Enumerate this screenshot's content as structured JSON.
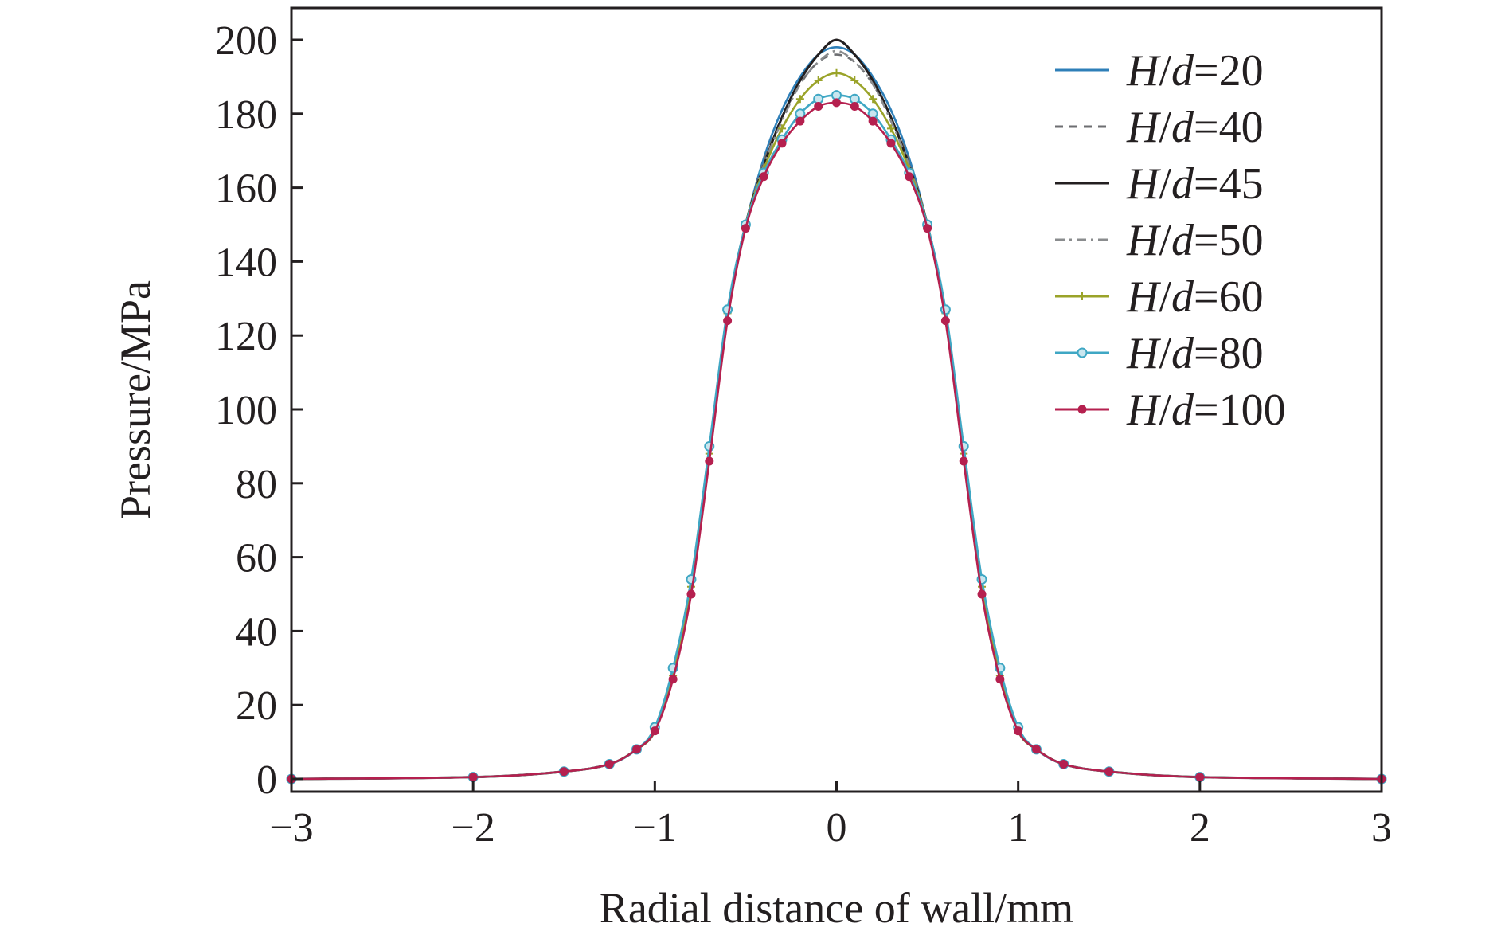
{
  "chart_data": {
    "type": "line",
    "title": "",
    "xlabel": "Radial distance of wall/mm",
    "ylabel": "Pressure/MPa",
    "xlim": [
      -3,
      3
    ],
    "ylim": [
      0,
      200
    ],
    "x_ticks": [
      -3,
      -2,
      -1,
      0,
      1,
      2,
      3
    ],
    "x_tick_labels": [
      "−3",
      "−2",
      "−1",
      "0",
      "1",
      "2",
      "3"
    ],
    "y_ticks": [
      0,
      20,
      40,
      60,
      80,
      100,
      120,
      140,
      160,
      180,
      200
    ],
    "y_tick_labels": [
      "0",
      "20",
      "40",
      "60",
      "80",
      "100",
      "120",
      "140",
      "160",
      "180",
      "200"
    ],
    "grid": false,
    "legend_position": "top-right",
    "x": [
      -3.0,
      -2.0,
      -1.5,
      -1.25,
      -1.1,
      -1.0,
      -0.9,
      -0.8,
      -0.7,
      -0.6,
      -0.5,
      -0.4,
      -0.3,
      -0.2,
      -0.1,
      0.0,
      0.1,
      0.2,
      0.3,
      0.4,
      0.5,
      0.6,
      0.7,
      0.8,
      0.9,
      1.0,
      1.1,
      1.25,
      1.5,
      2.0,
      3.0
    ],
    "series": [
      {
        "name": "H/d=20",
        "legend_prefix": "H",
        "legend_mid": "/",
        "legend_var": "d",
        "legend_suffix": "=20",
        "color": "#2e7fb8",
        "dash": "",
        "marker": "none",
        "values": [
          0,
          0.5,
          2,
          4,
          8,
          13,
          28,
          52,
          88,
          126,
          150,
          168,
          181,
          190,
          196,
          198,
          196,
          190,
          181,
          168,
          150,
          126,
          88,
          52,
          28,
          13,
          8,
          4,
          2,
          0.5,
          0
        ]
      },
      {
        "name": "H/d=40",
        "legend_prefix": "H",
        "legend_mid": "/",
        "legend_var": "d",
        "legend_suffix": "=40",
        "color": "#6d6e71",
        "dash": "10,8",
        "marker": "none",
        "values": [
          0,
          0.5,
          2,
          4,
          8,
          13,
          28,
          52,
          88,
          126,
          150,
          167,
          179,
          188,
          194,
          196,
          194,
          188,
          179,
          167,
          150,
          126,
          88,
          52,
          28,
          13,
          8,
          4,
          2,
          0.5,
          0
        ]
      },
      {
        "name": "H/d=45",
        "legend_prefix": "H",
        "legend_mid": "/",
        "legend_var": "d",
        "legend_suffix": "=45",
        "color": "#231f20",
        "dash": "",
        "marker": "none",
        "values": [
          0,
          0.5,
          2,
          4,
          8,
          13,
          28,
          52,
          88,
          126,
          150,
          166,
          179,
          189,
          196,
          200,
          196,
          189,
          179,
          166,
          150,
          126,
          88,
          52,
          28,
          13,
          8,
          4,
          2,
          0.5,
          0
        ]
      },
      {
        "name": "H/d=50",
        "legend_prefix": "H",
        "legend_mid": "/",
        "legend_var": "d",
        "legend_suffix": "=50",
        "color": "#8a8c8e",
        "dash": "12,6,3,6",
        "marker": "none",
        "values": [
          0,
          0.5,
          2,
          4,
          8,
          13,
          28,
          52,
          88,
          126,
          150,
          166,
          178,
          188,
          194,
          197,
          194,
          188,
          178,
          166,
          150,
          126,
          88,
          52,
          28,
          13,
          8,
          4,
          2,
          0.5,
          0
        ]
      },
      {
        "name": "H/d=60",
        "legend_prefix": "H",
        "legend_mid": "/",
        "legend_var": "d",
        "legend_suffix": "=60",
        "color": "#9aa329",
        "dash": "",
        "marker": "plus",
        "values": [
          0,
          0.5,
          2,
          4,
          8,
          13,
          28,
          52,
          88,
          126,
          150,
          165,
          176,
          184,
          189,
          191,
          189,
          184,
          176,
          165,
          150,
          126,
          88,
          52,
          28,
          13,
          8,
          4,
          2,
          0.5,
          0
        ]
      },
      {
        "name": "H/d=80",
        "legend_prefix": "H",
        "legend_mid": "/",
        "legend_var": "d",
        "legend_suffix": "=80",
        "color": "#3fa7c4",
        "dash": "",
        "marker": "circle",
        "values": [
          0,
          0.5,
          2,
          4,
          8,
          14,
          30,
          54,
          90,
          127,
          150,
          164,
          173,
          180,
          184,
          185,
          184,
          180,
          173,
          164,
          150,
          127,
          90,
          54,
          30,
          14,
          8,
          4,
          2,
          0.5,
          0
        ]
      },
      {
        "name": "H/d=100",
        "legend_prefix": "H",
        "legend_mid": "/",
        "legend_var": "d",
        "legend_suffix": "=100",
        "color": "#b5204f",
        "dash": "",
        "marker": "dot",
        "values": [
          0,
          0.5,
          2,
          4,
          8,
          13,
          27,
          50,
          86,
          124,
          149,
          163,
          172,
          178,
          182,
          183,
          182,
          178,
          172,
          163,
          149,
          124,
          86,
          50,
          27,
          13,
          8,
          4,
          2,
          0.5,
          0
        ]
      }
    ]
  }
}
